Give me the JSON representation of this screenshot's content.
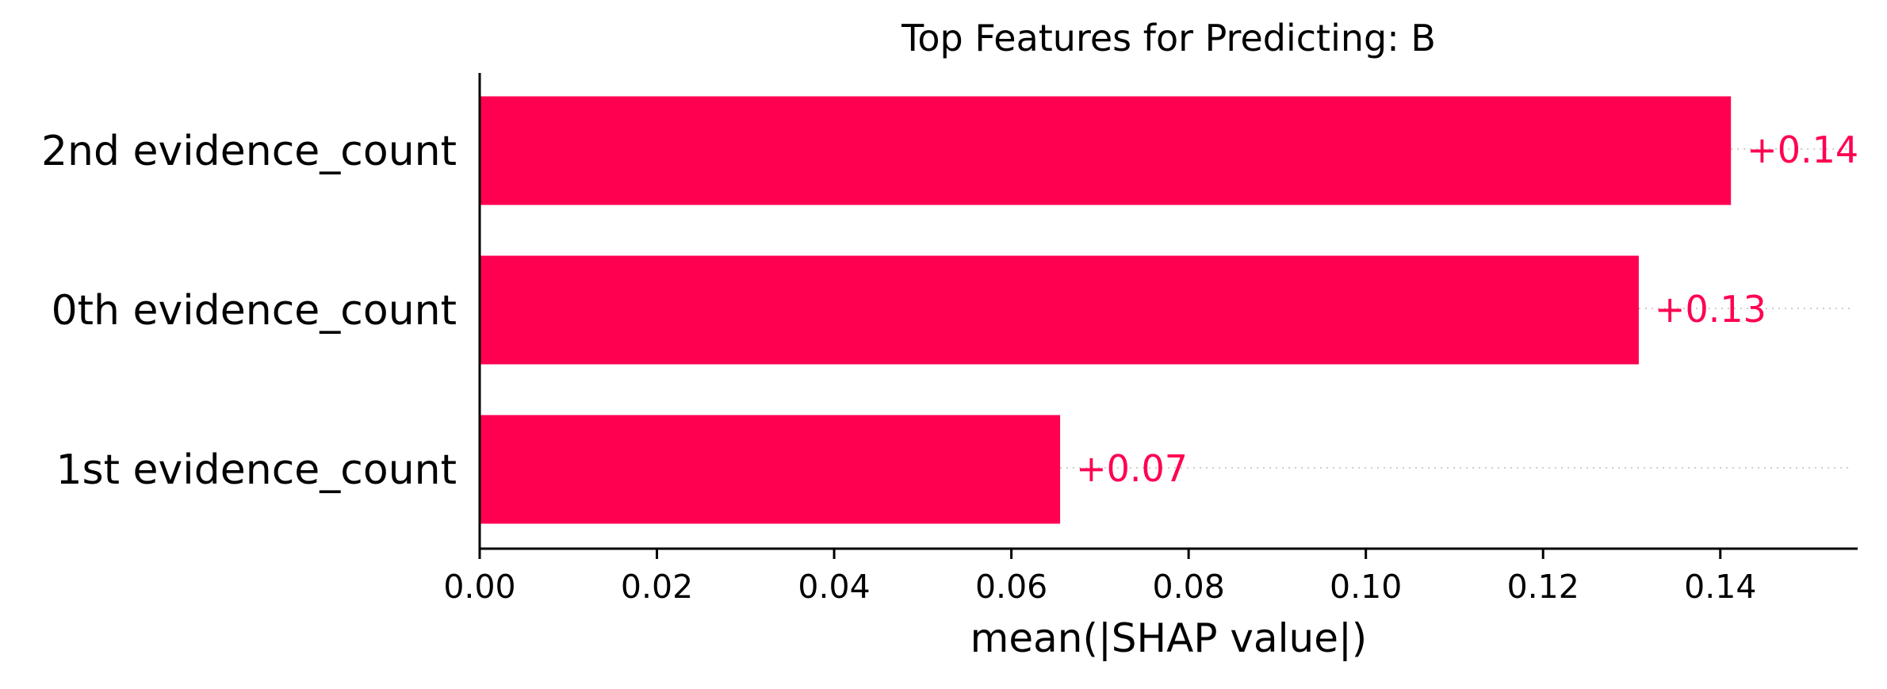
{
  "chart_data": {
    "type": "bar",
    "orientation": "horizontal",
    "title": "Top Features for Predicting: B",
    "xlabel": "mean(|SHAP value|)",
    "ylabel": "",
    "categories": [
      "2nd evidence_count",
      "0th evidence_count",
      "1st evidence_count"
    ],
    "values": [
      0.1412,
      0.1308,
      0.0655
    ],
    "value_labels": [
      "+0.14",
      "+0.13",
      "+0.07"
    ],
    "xlim": [
      0,
      0.1555
    ],
    "xticks": [
      0.0,
      0.02,
      0.04,
      0.06,
      0.08,
      0.1,
      0.12,
      0.14
    ],
    "xtick_labels": [
      "0.00",
      "0.02",
      "0.04",
      "0.06",
      "0.08",
      "0.10",
      "0.12",
      "0.14"
    ],
    "grid": false,
    "bar_color": "#ff0051",
    "label_color": "#ff0051",
    "guide_line_color": "#cccccc"
  }
}
